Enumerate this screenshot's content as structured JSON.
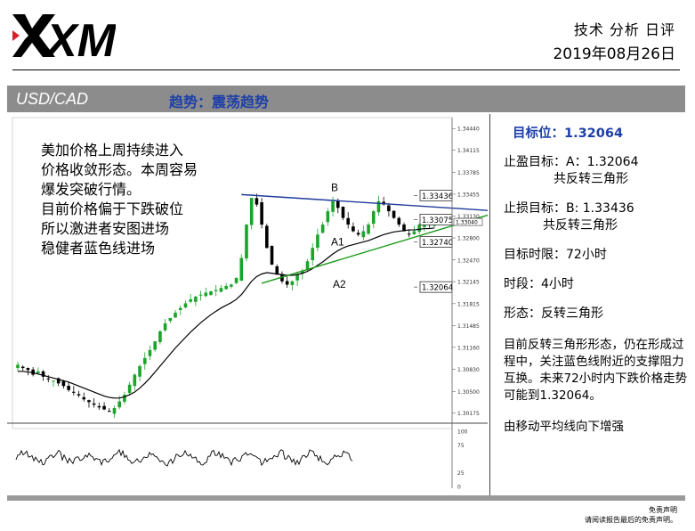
{
  "logo": {
    "text": "XM"
  },
  "header": {
    "report_type": "技术 分析 日评",
    "date": "2019年08月26日"
  },
  "title_bar": {
    "pair": "USD/CAD",
    "trend": "趋势：震荡趋势"
  },
  "note_lines": [
    "美加价格上周持续进入",
    "价格收敛形态。本周容易",
    "爆发突破行情。",
    "目前价格偏于下跌破位",
    "所以激进者安图进场",
    "稳健者蓝色线进场"
  ],
  "panel": {
    "target": "目标位：1.32064",
    "tp_line1": "止盈目标：A：1.32064",
    "tp_line2": "共反转三角形",
    "sl_line1": "止损目标：B: 1.33436",
    "sl_line2": "共反转三角形",
    "time_limit": "目标时限：72小时",
    "timeframe": "时段：4小时",
    "pattern": "形态：反转三角形",
    "analysis": "目前反转三角形形态，仍在形成过程中，关注蓝色线附近的支撑阻力互换。未来72小时内下跌价格走势可能到1.32064。",
    "ma_note": "由移动平均线向下增强"
  },
  "disclaimer": {
    "line1": "免责声明",
    "line2": "请阅读报告最后的免责声明。"
  },
  "colors": {
    "blue_line": "#1f3a9a",
    "green_line": "#1a9a1a",
    "bull_candle": "#1aa52a",
    "bear_candle": "#000000",
    "ma_line": "#000000"
  },
  "chart_data": {
    "type": "candlestick",
    "title": "",
    "y_axis_ticks": [
      "1.34440",
      "1.34115",
      "1.33785",
      "1.33455",
      "1.33130",
      "1.32800",
      "1.32470",
      "1.32145",
      "1.31815",
      "1.31485",
      "1.31160",
      "1.30830",
      "1.30500",
      "1.30175"
    ],
    "y_range": [
      1.3005,
      1.3455
    ],
    "current_price_label": "1.33040",
    "levels": [
      {
        "label": "B",
        "value": 1.33436,
        "tag": "1.33436"
      },
      {
        "label": "",
        "value": 1.33075,
        "tag": "1.33075"
      },
      {
        "label": "A1",
        "value": 1.3274,
        "tag": "1.32740"
      },
      {
        "label": "A2",
        "value": 1.32064,
        "tag": "1.32064"
      }
    ],
    "closes": [
      1.309,
      1.3085,
      1.3082,
      1.3075,
      1.308,
      1.3072,
      1.3068,
      1.3066,
      1.3062,
      1.3058,
      1.3052,
      1.3048,
      1.3044,
      1.3038,
      1.3034,
      1.303,
      1.3026,
      1.3023,
      1.302,
      1.3025,
      1.3035,
      1.3045,
      1.306,
      1.3075,
      1.3088,
      1.31,
      1.3112,
      1.3125,
      1.314,
      1.3152,
      1.316,
      1.3168,
      1.3175,
      1.3182,
      1.3188,
      1.3192,
      1.3195,
      1.3198,
      1.32,
      1.3202,
      1.3205,
      1.3208,
      1.321,
      1.322,
      1.325,
      1.33,
      1.334,
      1.333,
      1.33,
      1.3265,
      1.324,
      1.3225,
      1.3215,
      1.321,
      1.3215,
      1.3225,
      1.323,
      1.3245,
      1.3265,
      1.3285,
      1.33,
      1.332,
      1.3335,
      1.3325,
      1.331,
      1.33,
      1.329,
      1.3285,
      1.329,
      1.33,
      1.332,
      1.3335,
      1.333,
      1.332,
      1.331,
      1.33,
      1.329,
      1.3285,
      1.329,
      1.33,
      1.3305,
      1.33,
      1.33
    ],
    "ma": [
      1.308,
      1.308,
      1.3079,
      1.3078,
      1.3076,
      1.3074,
      1.3072,
      1.307,
      1.3068,
      1.3066,
      1.3064,
      1.3061,
      1.3058,
      1.3055,
      1.3052,
      1.3049,
      1.3046,
      1.3043,
      1.3041,
      1.304,
      1.304,
      1.3042,
      1.3045,
      1.3049,
      1.3055,
      1.3062,
      1.307,
      1.3079,
      1.3088,
      1.3097,
      1.3106,
      1.3115,
      1.3123,
      1.3131,
      1.3139,
      1.3146,
      1.3153,
      1.3159,
      1.3165,
      1.317,
      1.3175,
      1.3179,
      1.3183,
      1.3188,
      1.3195,
      1.3205,
      1.3215,
      1.3222,
      1.3226,
      1.3228,
      1.3227,
      1.3226,
      1.3225,
      1.3224,
      1.3224,
      1.3225,
      1.3227,
      1.323,
      1.3234,
      1.3239,
      1.3244,
      1.325,
      1.3256,
      1.3261,
      1.3265,
      1.3268,
      1.327,
      1.3272,
      1.3274,
      1.3276,
      1.3279,
      1.3282,
      1.3285,
      1.3287,
      1.3289,
      1.329,
      1.3291,
      1.3292,
      1.3292,
      1.3293,
      1.3294,
      1.3294,
      1.3295
    ],
    "blue_trendline": [
      [
        44,
        1.3345
      ],
      [
        95,
        1.332
      ]
    ],
    "green_trendline": [
      [
        48,
        1.3212
      ],
      [
        95,
        1.332
      ]
    ],
    "oscillator": {
      "ticks": [
        "100",
        "75",
        "25",
        "0"
      ],
      "range": [
        0,
        100
      ],
      "mean": 52
    }
  }
}
